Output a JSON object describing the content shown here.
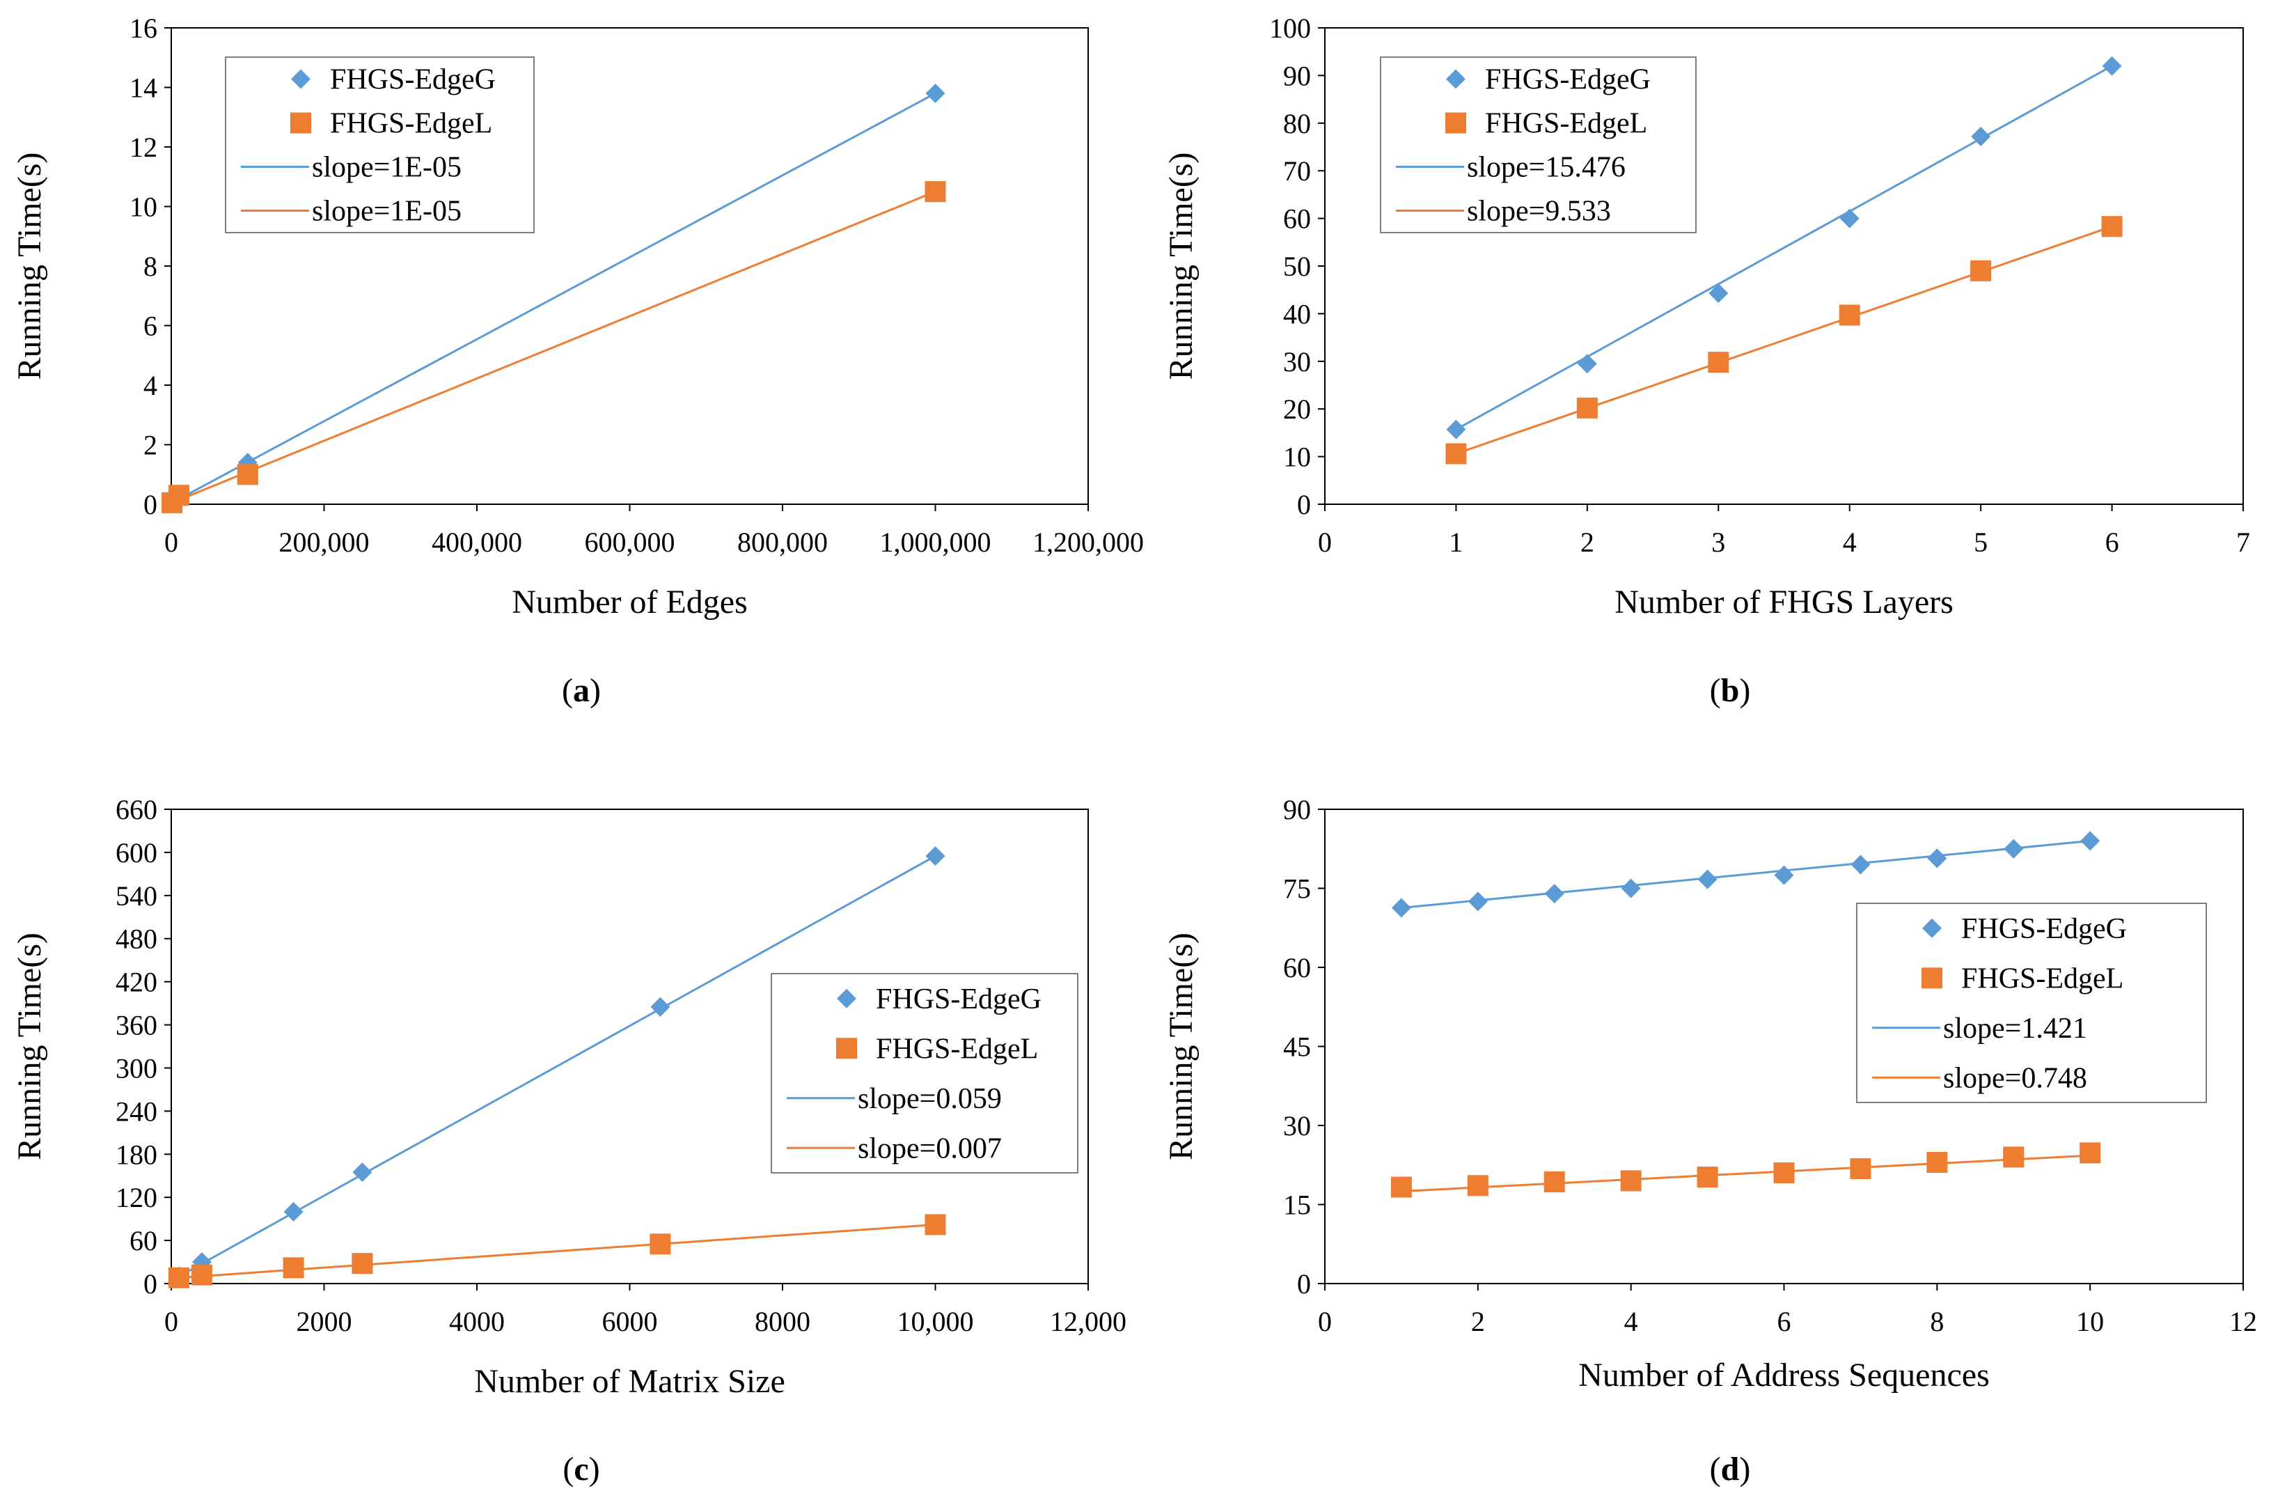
{
  "colors": {
    "series_g": "#5B9BD5",
    "series_l": "#ED7D31",
    "axis": "#000000"
  },
  "chart_data": [
    {
      "id": "a",
      "type": "scatter",
      "caption": "a",
      "xlabel": "Number of Edges",
      "ylabel": "Running Time(s)",
      "xlim": [
        0,
        1200000
      ],
      "ylim": [
        0,
        16
      ],
      "xticks": [
        "0",
        "200,000",
        "400,000",
        "600,000",
        "800,000",
        "1,000,000",
        "1,200,000"
      ],
      "yticks": [
        "0",
        "2",
        "4",
        "6",
        "8",
        "10",
        "12",
        "14",
        "16"
      ],
      "legend_position": "top-left",
      "series": [
        {
          "name": "FHGS-EdgeG",
          "marker": "diamond",
          "x": [
            1000,
            10000,
            100000,
            1000000
          ],
          "y": [
            0.05,
            0.15,
            1.4,
            13.8
          ]
        },
        {
          "name": "FHGS-EdgeL",
          "marker": "square",
          "x": [
            1000,
            10000,
            100000,
            1000000
          ],
          "y": [
            0.05,
            0.3,
            1.0,
            10.5
          ]
        }
      ],
      "trendlines": [
        {
          "name": "slope=1E-05",
          "series": 0,
          "from": [
            1000,
            0.05
          ],
          "to": [
            1000000,
            13.8
          ]
        },
        {
          "name": "slope=1E-05",
          "series": 1,
          "from": [
            1000,
            0.05
          ],
          "to": [
            1000000,
            10.5
          ]
        }
      ]
    },
    {
      "id": "b",
      "type": "scatter",
      "caption": "b",
      "xlabel": "Number of FHGS Layers",
      "ylabel": "Running Time(s)",
      "xlim": [
        0,
        7
      ],
      "ylim": [
        0,
        100
      ],
      "xticks": [
        "0",
        "1",
        "2",
        "3",
        "4",
        "5",
        "6",
        "7"
      ],
      "yticks": [
        "0",
        "10",
        "20",
        "30",
        "40",
        "50",
        "60",
        "70",
        "80",
        "90",
        "100"
      ],
      "legend_position": "top-left",
      "series": [
        {
          "name": "FHGS-EdgeG",
          "marker": "diamond",
          "x": [
            1,
            2,
            3,
            4,
            5,
            6
          ],
          "y": [
            15.7,
            29.5,
            44.3,
            60,
            77.2,
            92
          ]
        },
        {
          "name": "FHGS-EdgeL",
          "marker": "square",
          "x": [
            1,
            2,
            3,
            4,
            5,
            6
          ],
          "y": [
            10.6,
            20.2,
            29.8,
            39.7,
            49,
            58.3
          ]
        }
      ],
      "trendlines": [
        {
          "name": "slope=15.476",
          "series": 0,
          "from": [
            1,
            15.7
          ],
          "to": [
            6,
            92
          ]
        },
        {
          "name": "slope=9.533",
          "series": 1,
          "from": [
            1,
            10.6
          ],
          "to": [
            6,
            58.3
          ]
        }
      ]
    },
    {
      "id": "c",
      "type": "scatter",
      "caption": "c",
      "xlabel": "Number of Matrix Size",
      "ylabel": "Running Time(s)",
      "xlim": [
        0,
        12000
      ],
      "ylim": [
        0,
        660
      ],
      "xticks": [
        "0",
        "2000",
        "4000",
        "6000",
        "8000",
        "10,000",
        "12,000"
      ],
      "yticks": [
        "0",
        "60",
        "120",
        "180",
        "240",
        "300",
        "360",
        "420",
        "480",
        "540",
        "600",
        "660"
      ],
      "legend_position": "middle-right",
      "series": [
        {
          "name": "FHGS-EdgeG",
          "marker": "diamond",
          "x": [
            100,
            400,
            1600,
            2500,
            6400,
            10000
          ],
          "y": [
            10,
            30,
            100,
            155,
            385,
            595
          ]
        },
        {
          "name": "FHGS-EdgeL",
          "marker": "square",
          "x": [
            100,
            400,
            1600,
            2500,
            6400,
            10000
          ],
          "y": [
            8,
            12,
            22,
            28,
            55,
            82
          ]
        }
      ],
      "trendlines": [
        {
          "name": "slope=0.059",
          "series": 0,
          "from": [
            100,
            10
          ],
          "to": [
            10000,
            595
          ]
        },
        {
          "name": "slope=0.007",
          "series": 1,
          "from": [
            100,
            8
          ],
          "to": [
            10000,
            82
          ]
        }
      ]
    },
    {
      "id": "d",
      "type": "scatter",
      "caption": "d",
      "xlabel": "Number of Address Sequences",
      "ylabel": "Running Time(s)",
      "xlim": [
        0,
        12
      ],
      "ylim": [
        0,
        90
      ],
      "xticks": [
        "0",
        "2",
        "4",
        "6",
        "8",
        "10",
        "12"
      ],
      "yticks": [
        "0",
        "15",
        "30",
        "45",
        "60",
        "75",
        "90"
      ],
      "legend_position": "middle-right",
      "series": [
        {
          "name": "FHGS-EdgeG",
          "marker": "diamond",
          "x": [
            1,
            2,
            3,
            4,
            5,
            6,
            7,
            8,
            9,
            10
          ],
          "y": [
            71.3,
            72.5,
            74,
            75,
            76.7,
            77.5,
            79.5,
            80.7,
            82.5,
            84
          ]
        },
        {
          "name": "FHGS-EdgeL",
          "marker": "square",
          "x": [
            1,
            2,
            3,
            4,
            5,
            6,
            7,
            8,
            9,
            10
          ],
          "y": [
            18.3,
            18.6,
            19.3,
            19.5,
            20.2,
            21,
            21.8,
            23,
            24,
            24.8
          ]
        }
      ],
      "trendlines": [
        {
          "name": "slope=1.421",
          "series": 0,
          "from": [
            1,
            71.3
          ],
          "to": [
            10,
            84
          ]
        },
        {
          "name": "slope=0.748",
          "series": 1,
          "from": [
            1,
            17.5
          ],
          "to": [
            10,
            24.3
          ]
        }
      ]
    }
  ]
}
